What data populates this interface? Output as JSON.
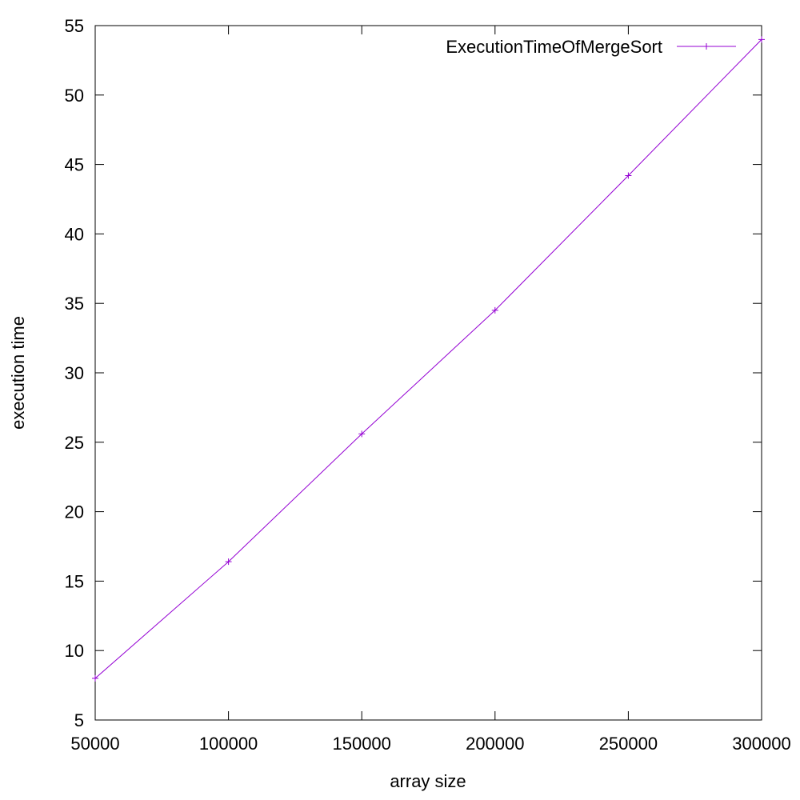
{
  "chart_data": {
    "type": "line",
    "xlabel": "array size",
    "ylabel": "execution time",
    "xlim": [
      50000,
      300000
    ],
    "ylim": [
      5,
      55
    ],
    "x_ticks": [
      50000,
      100000,
      150000,
      200000,
      250000,
      300000
    ],
    "y_ticks": [
      5,
      10,
      15,
      20,
      25,
      30,
      35,
      40,
      45,
      50,
      55
    ],
    "legend_position": "top-right",
    "grid": false,
    "series": [
      {
        "name": "ExecutionTimeOfMergeSort",
        "color": "#9400d3",
        "marker": "plus",
        "x": [
          50000,
          100000,
          150000,
          200000,
          250000,
          300000
        ],
        "y": [
          8.0,
          16.4,
          25.6,
          34.5,
          44.2,
          54.0
        ]
      }
    ]
  }
}
